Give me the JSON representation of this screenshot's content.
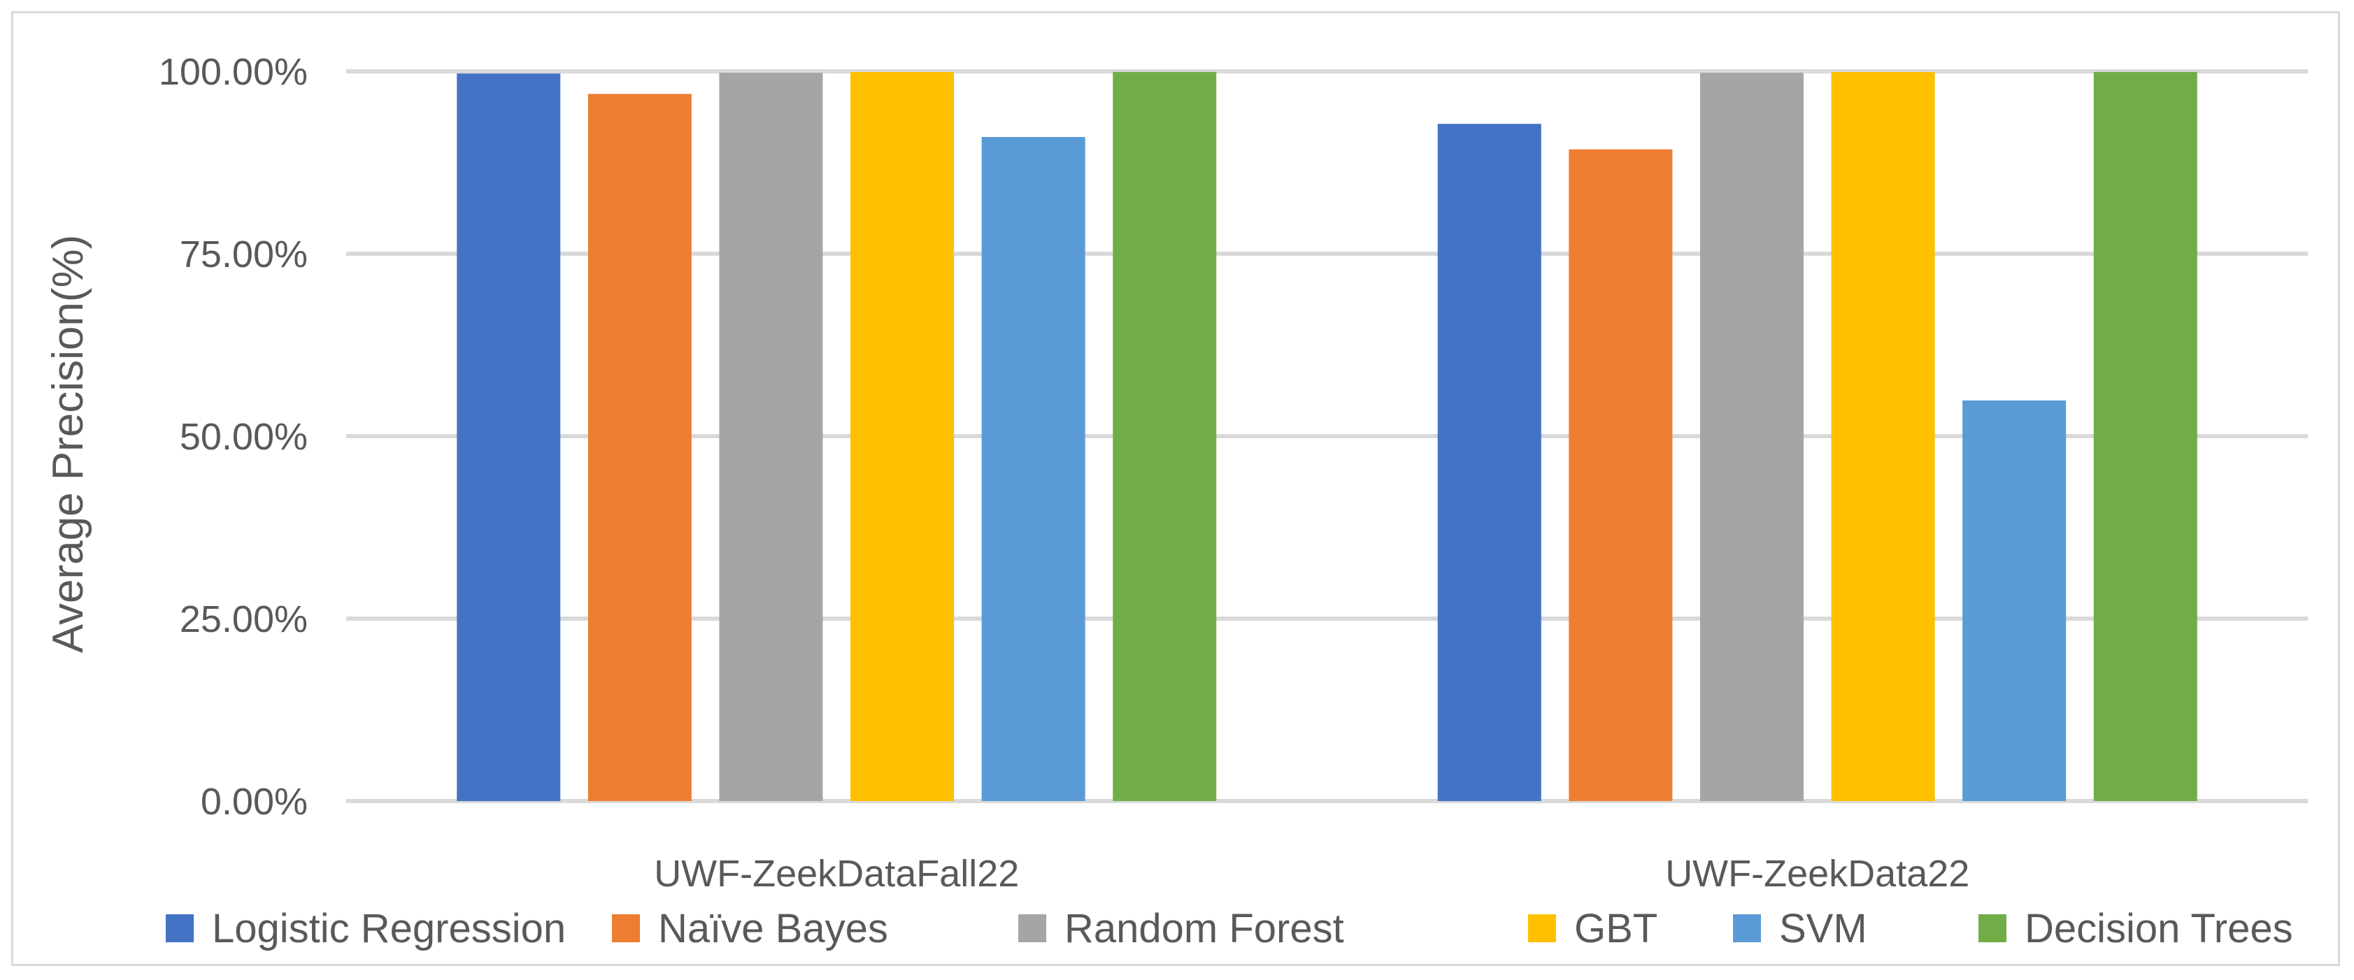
{
  "chart_data": {
    "type": "bar",
    "categories": [
      "UWF-ZeekDataFall22",
      "UWF-ZeekData22"
    ],
    "series": [
      {
        "name": "Logistic Regression",
        "values": [
          99.7,
          92.8
        ],
        "color": "#4472c4"
      },
      {
        "name": "Naïve Bayes",
        "values": [
          96.9,
          89.3
        ],
        "color": "#ed7d31"
      },
      {
        "name": "Random Forest",
        "values": [
          99.8,
          99.8
        ],
        "color": "#a5a5a5"
      },
      {
        "name": "GBT",
        "values": [
          99.9,
          99.9
        ],
        "color": "#ffc000"
      },
      {
        "name": "SVM",
        "values": [
          91.0,
          54.9
        ],
        "color": "#5b9bd5"
      },
      {
        "name": "Decision Trees",
        "values": [
          99.9,
          99.9
        ],
        "color": "#70ad47"
      }
    ],
    "title": "",
    "xlabel": "",
    "ylabel": "Average Precision(%)",
    "ylim": [
      0,
      100
    ],
    "yticks": [
      0,
      25,
      50,
      75,
      100
    ],
    "ytick_labels": [
      "0.00%",
      "25.00%",
      "50.00%",
      "75.00%",
      "100.00%"
    ],
    "grid": true,
    "legend_position": "bottom",
    "gridline_color": "#d9d9d9"
  }
}
